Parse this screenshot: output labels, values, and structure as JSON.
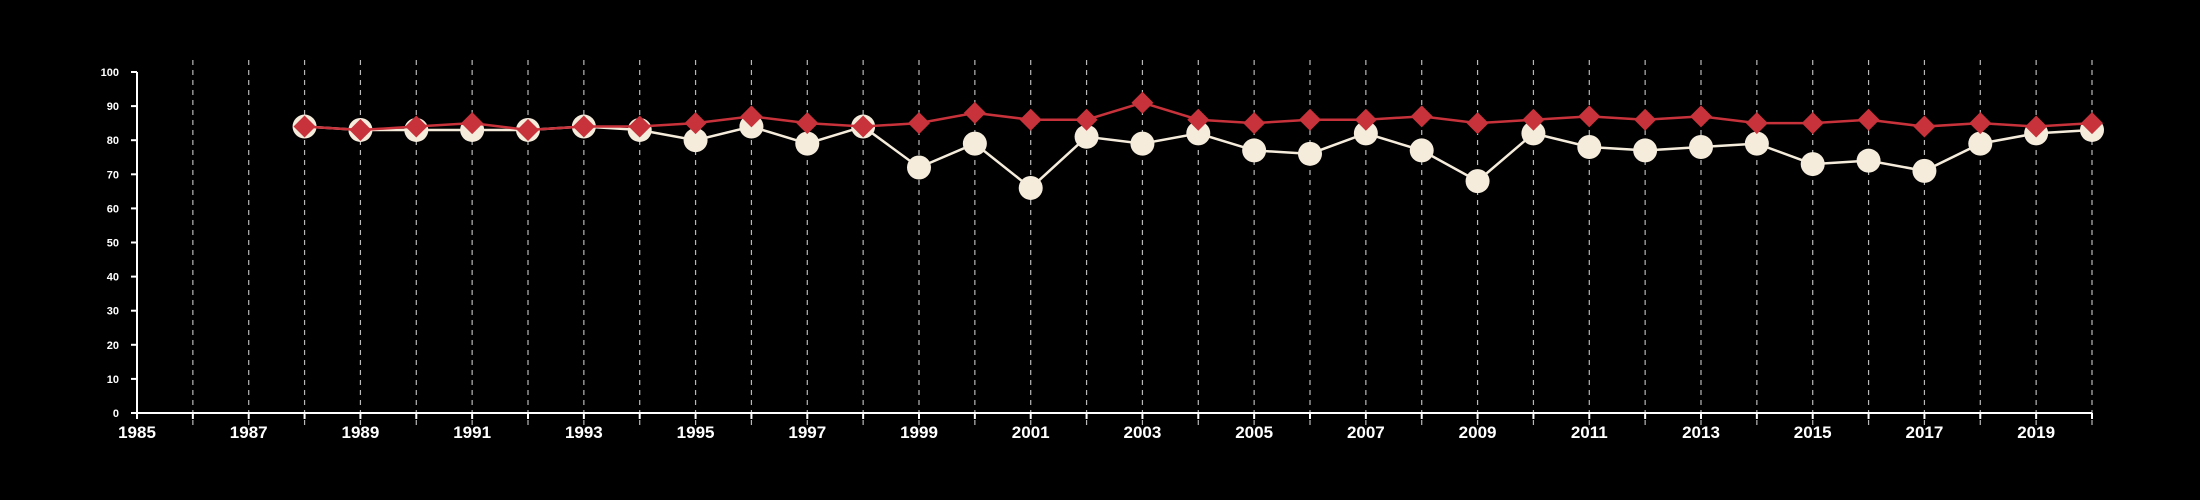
{
  "chart_data": {
    "type": "line",
    "title": "",
    "xlabel": "",
    "ylabel": "",
    "xlim": [
      1985,
      2020
    ],
    "ylim": [
      0,
      100
    ],
    "y_ticks": [
      "0",
      "10",
      "20",
      "30",
      "40",
      "50",
      "60",
      "70",
      "80",
      "90",
      "100"
    ],
    "x_tick_labels": [
      "1985",
      "1987",
      "1989",
      "1991",
      "1993",
      "1995",
      "1997",
      "1999",
      "2001",
      "2003",
      "2005",
      "2007",
      "2009",
      "2011",
      "2013",
      "2015",
      "2017",
      "2019"
    ],
    "x_tick_values": [
      1985,
      1986,
      1987,
      1988,
      1989,
      1990,
      1991,
      1992,
      1993,
      1994,
      1995,
      1996,
      1997,
      1998,
      1999,
      2000,
      2001,
      2002,
      2003,
      2004,
      2005,
      2006,
      2007,
      2008,
      2009,
      2010,
      2011,
      2012,
      2013,
      2014,
      2015,
      2016,
      2017,
      2018,
      2019,
      2020
    ],
    "grid": "vertical dashed",
    "x": [
      1988,
      1989,
      1990,
      1991,
      1992,
      1993,
      1994,
      1995,
      1996,
      1997,
      1998,
      1999,
      2000,
      2001,
      2002,
      2003,
      2004,
      2005,
      2006,
      2007,
      2008,
      2009,
      2010,
      2011,
      2012,
      2013,
      2014,
      2015,
      2016,
      2017,
      2018,
      2019,
      2020
    ],
    "series": [
      {
        "marker": "circle",
        "color": "#f5ecdc",
        "values": [
          84,
          83,
          83,
          83,
          83,
          84,
          83,
          80,
          84,
          79,
          84,
          72,
          79,
          66,
          81,
          79,
          82,
          77,
          76,
          82,
          77,
          68,
          82,
          78,
          77,
          78,
          79,
          73,
          74,
          71,
          79,
          82,
          83
        ]
      },
      {
        "marker": "diamond",
        "color": "#c8323a",
        "values": [
          84,
          83,
          84,
          85,
          83,
          84,
          84,
          85,
          87,
          85,
          84,
          85,
          88,
          86,
          86,
          91,
          86,
          85,
          86,
          86,
          87,
          85,
          86,
          87,
          86,
          87,
          85,
          85,
          86,
          84,
          85,
          84,
          85
        ]
      }
    ]
  }
}
